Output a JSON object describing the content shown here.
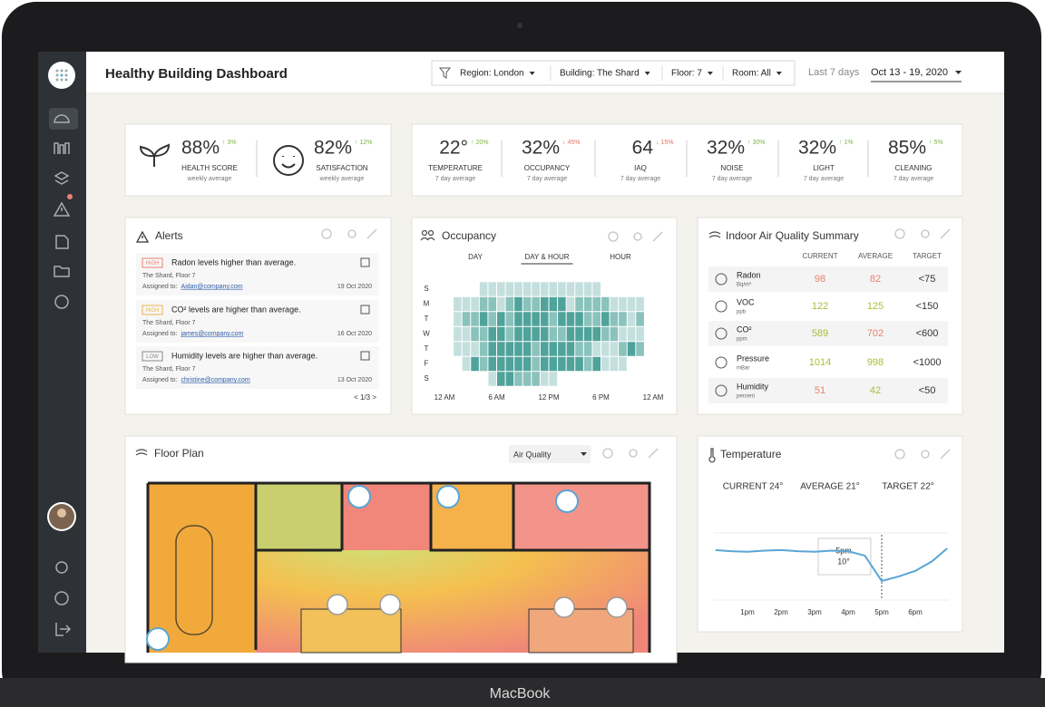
{
  "device_label": "MacBook",
  "header": {
    "title": "Healthy Building Dashboard",
    "filters": [
      "Region: London",
      "Building: The Shard",
      "Floor: 7",
      "Room: All"
    ],
    "period_label": "Last 7 days",
    "date_range": "Oct 13 - 19, 2020"
  },
  "summary": {
    "wellbeing": [
      {
        "value": "88%",
        "delta": "↑ 3%",
        "color": "#7cb342",
        "label": "HEALTH SCORE",
        "sublabel": "weekly average"
      },
      {
        "value": "82%",
        "delta": "↑ 12%",
        "color": "#7cb342",
        "label": "SATISFACTION",
        "sublabel": "weekly average"
      }
    ],
    "metrics": [
      {
        "value": "22°",
        "delta": "↑ 20%",
        "color": "#7cb342",
        "label": "TEMPERATURE",
        "sublabel": "7 day average"
      },
      {
        "value": "32%",
        "delta": "↓ 45%",
        "color": "#e57361",
        "label": "OCCUPANCY",
        "sublabel": "7 day average"
      },
      {
        "value": "64",
        "delta": "↓ 15%",
        "color": "#e57361",
        "label": "IAQ",
        "sublabel": "7 day average"
      },
      {
        "value": "32%",
        "delta": "↑ 30%",
        "color": "#7cb342",
        "label": "NOISE",
        "sublabel": "7 day average"
      },
      {
        "value": "32%",
        "delta": "↑ 1%",
        "color": "#7cb342",
        "label": "LIGHT",
        "sublabel": "7 day average"
      },
      {
        "value": "85%",
        "delta": "↑ 5%",
        "color": "#7cb342",
        "label": "CLEANING",
        "sublabel": "7 day average"
      }
    ]
  },
  "alerts": {
    "title": "Alerts",
    "items": [
      {
        "badge": "HIGH",
        "badge_color": "#e8826f",
        "message": "Radon levels higher than average.",
        "location": "The Shard, Floor 7",
        "assigned_label": "Assigned to:",
        "assignee": "Aidan@company.com",
        "date": "19 Oct 2020"
      },
      {
        "badge": "HIGH",
        "badge_color": "#e9b44c",
        "message": "CO² levels are higher than average.",
        "location": "The Shard, Floor 7",
        "assigned_label": "Assigned to:",
        "assignee": "james@company.com",
        "date": "16 Oct 2020"
      },
      {
        "badge": "LOW",
        "badge_color": "#8a8a8a",
        "message": "Humidity levels are higher than average.",
        "location": "The Shard, Floor 7",
        "assigned_label": "Assigned to:",
        "assignee": "christine@company.com",
        "date": "13 Oct 2020"
      }
    ],
    "pager": "< 1/3 >"
  },
  "occupancy": {
    "title": "Occupancy",
    "tabs": [
      "DAY",
      "DAY & HOUR",
      "HOUR"
    ],
    "active_tab": 1,
    "days": [
      "S",
      "M",
      "T",
      "W",
      "T",
      "F",
      "S"
    ],
    "hour_ticks": [
      {
        "value": 0,
        "label": "12 AM"
      },
      {
        "value": 6,
        "label": "6 AM"
      },
      {
        "value": 12,
        "label": "12 PM"
      },
      {
        "value": 18,
        "label": "6 PM"
      },
      {
        "value": 24,
        "label": "12 AM"
      }
    ],
    "color": "#4fa39b",
    "cells": [
      [
        null,
        null,
        null,
        null,
        1,
        1,
        1,
        1,
        1,
        1,
        1,
        1,
        1,
        1,
        1,
        1,
        1,
        1,
        null,
        null,
        null,
        null,
        null,
        null
      ],
      [
        null,
        1,
        1,
        1,
        2,
        2,
        1,
        2,
        3,
        2,
        2,
        3,
        3,
        3,
        1,
        2,
        2,
        2,
        2,
        1,
        1,
        1,
        1,
        null
      ],
      [
        null,
        1,
        2,
        2,
        3,
        2,
        3,
        2,
        3,
        3,
        3,
        3,
        2,
        3,
        3,
        3,
        2,
        2,
        3,
        2,
        2,
        1,
        2,
        null
      ],
      [
        null,
        1,
        1,
        2,
        2,
        3,
        3,
        2,
        3,
        3,
        3,
        3,
        2,
        2,
        3,
        3,
        3,
        3,
        2,
        2,
        1,
        1,
        1,
        null
      ],
      [
        null,
        1,
        1,
        1,
        2,
        3,
        3,
        3,
        3,
        3,
        2,
        3,
        3,
        3,
        3,
        2,
        2,
        1,
        1,
        1,
        2,
        3,
        2,
        null
      ],
      [
        null,
        null,
        1,
        3,
        2,
        3,
        3,
        3,
        3,
        3,
        2,
        3,
        3,
        3,
        3,
        3,
        2,
        3,
        1,
        1,
        1,
        null,
        null,
        null
      ],
      [
        null,
        null,
        null,
        null,
        null,
        1,
        3,
        3,
        2,
        2,
        2,
        1,
        1,
        null,
        null,
        null,
        null,
        null,
        null,
        null,
        null,
        null,
        null,
        null
      ]
    ]
  },
  "air_quality": {
    "title": "Indoor Air Quality Summary",
    "columns": [
      "CURRENT",
      "AVERAGE",
      "TARGET"
    ],
    "rows": [
      {
        "name": "Radon",
        "unit": "Bq/m³",
        "current": 98,
        "current_color": "#e8826f",
        "average": 82,
        "average_color": "#e8826f",
        "target": "<75"
      },
      {
        "name": "VOC",
        "unit": "ppb",
        "current": 122,
        "current_color": "#a6bf3c",
        "average": 125,
        "average_color": "#a6bf3c",
        "target": "<150"
      },
      {
        "name": "CO²",
        "unit": "ppm",
        "current": 589,
        "current_color": "#a6bf3c",
        "average": 702,
        "average_color": "#e8826f",
        "target": "<600"
      },
      {
        "name": "Pressure",
        "unit": "mBar",
        "current": 1014,
        "current_color": "#a6bf3c",
        "average": 998,
        "average_color": "#a6bf3c",
        "target": "<1000"
      },
      {
        "name": "Humidity",
        "unit": "percent",
        "current": 51,
        "current_color": "#e8826f",
        "average": 42,
        "average_color": "#a6bf3c",
        "target": "<50"
      }
    ]
  },
  "floor_plan": {
    "title": "Floor Plan",
    "layer": "Air Quality"
  },
  "temperature": {
    "title": "Temperature",
    "stats": [
      "CURRENT 24°",
      "AVERAGE 21°",
      "TARGET 22°"
    ],
    "color": "#5aa5d6",
    "xlim": [
      12,
      19
    ],
    "xticks": [
      {
        "value": 13,
        "label": "1pm"
      },
      {
        "value": 14,
        "label": "2pm"
      },
      {
        "value": 15,
        "label": "3pm"
      },
      {
        "value": 16,
        "label": "4pm"
      },
      {
        "value": 17,
        "label": "5pm"
      },
      {
        "value": 18,
        "label": "6pm"
      }
    ],
    "x": [
      12.05,
      12.5,
      13,
      13.5,
      14,
      14.5,
      15,
      15.5,
      16,
      16.5,
      17,
      17.5,
      18,
      18.5,
      18.95
    ],
    "values": [
      15.5,
      15.3,
      15.2,
      15.4,
      15.5,
      15.3,
      15.2,
      15.4,
      15.3,
      14.5,
      10,
      10.8,
      11.8,
      13.5,
      15.8
    ],
    "tooltip": {
      "time": "5pm",
      "value": "10°"
    }
  }
}
